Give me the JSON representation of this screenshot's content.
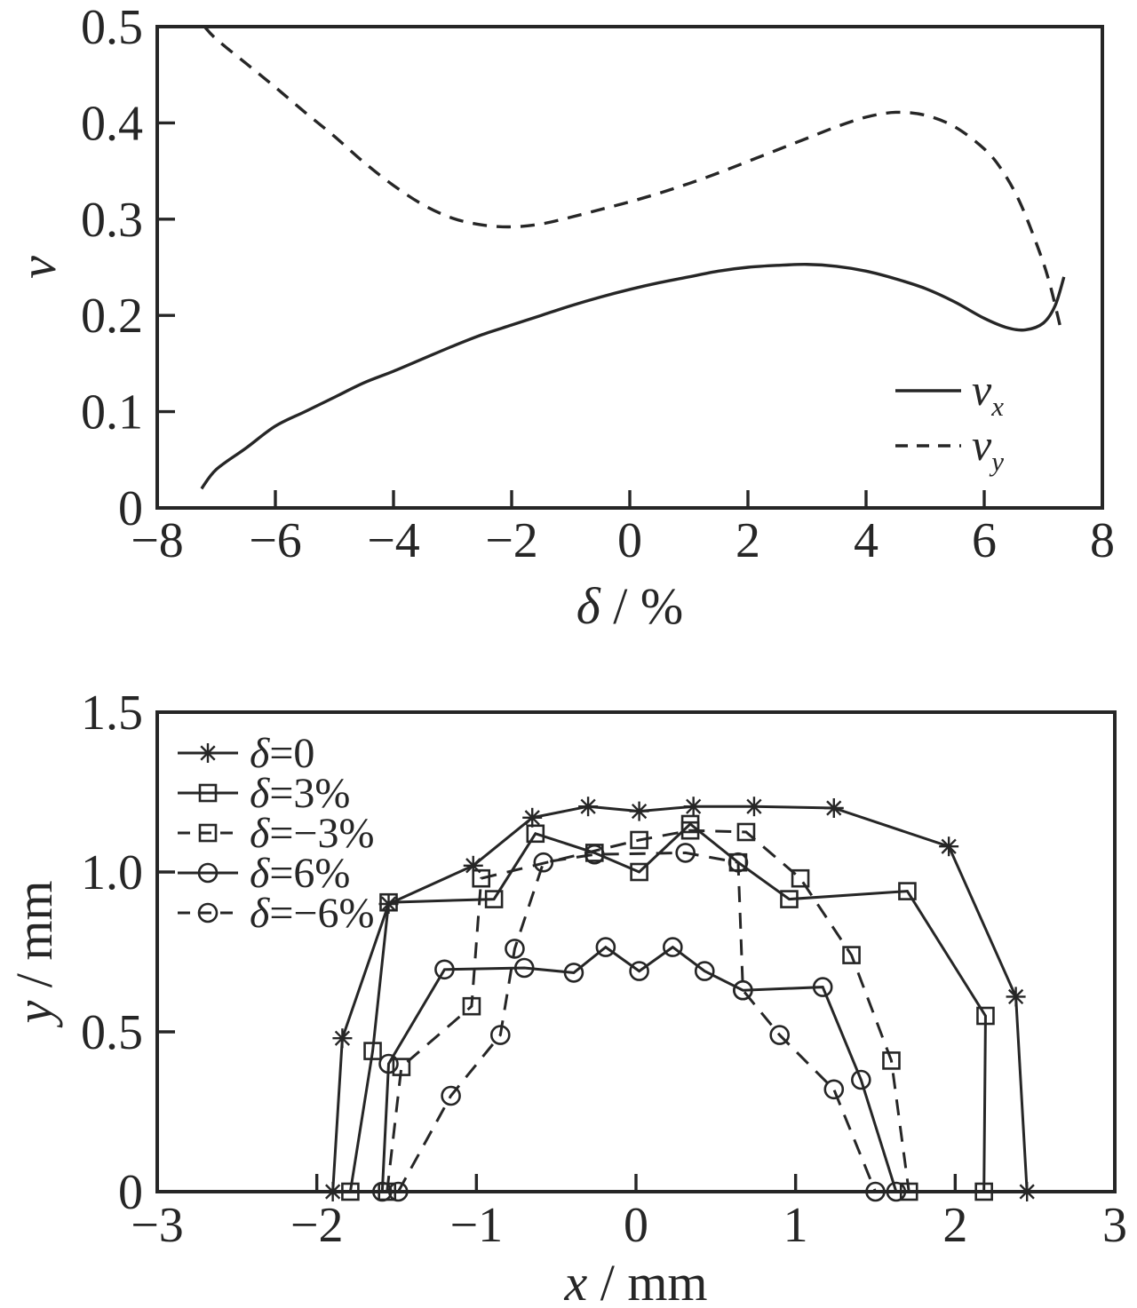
{
  "figure": {
    "background": "#ffffff",
    "ink_color": "#262626"
  },
  "chart_data": [
    {
      "type": "line",
      "id": "velocity-vs-strain",
      "xlabel": "δ / %",
      "ylabel": "v",
      "xlim": [
        -8,
        8
      ],
      "ylim": [
        0,
        0.5
      ],
      "xticks": [
        -8,
        -6,
        -4,
        -2,
        0,
        2,
        4,
        6,
        8
      ],
      "xtick_labels": [
        "−8",
        "−6",
        "−4",
        "−2",
        "0",
        "2",
        "4",
        "6",
        "8"
      ],
      "yticks": [
        0,
        0.1,
        0.2,
        0.3,
        0.4,
        0.5
      ],
      "ytick_labels": [
        "0",
        "0.1",
        "0.2",
        "0.3",
        "0.4",
        "0.5"
      ],
      "grid": false,
      "legend_position": "inside lower right",
      "series": [
        {
          "name": "vx",
          "legend_base": "v",
          "legend_sub": "x",
          "style": "solid",
          "marker": "none",
          "smooth": true,
          "points": [
            [
              -7.25,
              0.02
            ],
            [
              -7.0,
              0.04
            ],
            [
              -6.5,
              0.062
            ],
            [
              -6.0,
              0.085
            ],
            [
              -5.5,
              0.1
            ],
            [
              -5.0,
              0.115
            ],
            [
              -4.5,
              0.13
            ],
            [
              -4.0,
              0.142
            ],
            [
              -3.5,
              0.155
            ],
            [
              -3.0,
              0.168
            ],
            [
              -2.5,
              0.18
            ],
            [
              -2.0,
              0.19
            ],
            [
              -1.5,
              0.2
            ],
            [
              -1.0,
              0.21
            ],
            [
              -0.5,
              0.219
            ],
            [
              0.0,
              0.227
            ],
            [
              0.5,
              0.234
            ],
            [
              1.0,
              0.24
            ],
            [
              1.5,
              0.246
            ],
            [
              2.0,
              0.25
            ],
            [
              2.5,
              0.252
            ],
            [
              3.0,
              0.253
            ],
            [
              3.5,
              0.251
            ],
            [
              4.0,
              0.246
            ],
            [
              4.5,
              0.238
            ],
            [
              5.0,
              0.228
            ],
            [
              5.5,
              0.214
            ],
            [
              6.0,
              0.197
            ],
            [
              6.4,
              0.187
            ],
            [
              6.7,
              0.185
            ],
            [
              7.0,
              0.192
            ],
            [
              7.2,
              0.21
            ],
            [
              7.35,
              0.24
            ]
          ]
        },
        {
          "name": "vy",
          "legend_base": "v",
          "legend_sub": "y",
          "style": "dashed",
          "marker": "none",
          "smooth": true,
          "points": [
            [
              -7.2,
              0.5
            ],
            [
              -7.0,
              0.487
            ],
            [
              -6.5,
              0.462
            ],
            [
              -6.0,
              0.437
            ],
            [
              -5.5,
              0.411
            ],
            [
              -5.0,
              0.386
            ],
            [
              -4.5,
              0.359
            ],
            [
              -4.0,
              0.335
            ],
            [
              -3.5,
              0.315
            ],
            [
              -3.0,
              0.301
            ],
            [
              -2.5,
              0.294
            ],
            [
              -2.0,
              0.292
            ],
            [
              -1.5,
              0.295
            ],
            [
              -1.0,
              0.302
            ],
            [
              -0.5,
              0.31
            ],
            [
              0.0,
              0.318
            ],
            [
              0.5,
              0.327
            ],
            [
              1.0,
              0.337
            ],
            [
              1.5,
              0.348
            ],
            [
              2.0,
              0.36
            ],
            [
              2.5,
              0.372
            ],
            [
              3.0,
              0.384
            ],
            [
              3.5,
              0.396
            ],
            [
              4.0,
              0.406
            ],
            [
              4.5,
              0.411
            ],
            [
              5.0,
              0.408
            ],
            [
              5.5,
              0.396
            ],
            [
              6.0,
              0.373
            ],
            [
              6.3,
              0.351
            ],
            [
              6.6,
              0.318
            ],
            [
              6.9,
              0.272
            ],
            [
              7.1,
              0.235
            ],
            [
              7.3,
              0.185
            ]
          ]
        }
      ]
    },
    {
      "type": "line",
      "id": "profile-y-vs-x",
      "xlabel": "x / mm",
      "ylabel": "y / mm",
      "xlim": [
        -3,
        3
      ],
      "ylim": [
        0,
        1.5
      ],
      "xticks": [
        -3,
        -2,
        -1,
        0,
        1,
        2,
        3
      ],
      "xtick_labels": [
        "−3",
        "−2",
        "−1",
        "0",
        "1",
        "2",
        "3"
      ],
      "yticks": [
        0,
        0.5,
        1.0,
        1.5
      ],
      "ytick_labels": [
        "0",
        "0.5",
        "1.0",
        "1.5"
      ],
      "grid": false,
      "legend_position": "inside upper left",
      "series": [
        {
          "name": "delta=0",
          "legend_label": "δ=0",
          "style": "solid",
          "marker": "asterisk",
          "smooth": false,
          "points": [
            [
              -1.9,
              0
            ],
            [
              -1.84,
              0.48
            ],
            [
              -1.55,
              0.9
            ],
            [
              -1.02,
              1.02
            ],
            [
              -0.65,
              1.17
            ],
            [
              -0.3,
              1.205
            ],
            [
              0.02,
              1.19
            ],
            [
              0.36,
              1.205
            ],
            [
              0.74,
              1.205
            ],
            [
              1.24,
              1.2
            ],
            [
              1.96,
              1.08
            ],
            [
              2.38,
              0.61
            ],
            [
              2.45,
              0
            ]
          ]
        },
        {
          "name": "delta=3%",
          "legend_label": "δ=3%",
          "style": "solid",
          "marker": "square",
          "smooth": false,
          "points": [
            [
              -1.79,
              0
            ],
            [
              -1.65,
              0.44
            ],
            [
              -1.55,
              0.905
            ],
            [
              -0.89,
              0.915
            ],
            [
              -0.63,
              1.12
            ],
            [
              -0.26,
              1.06
            ],
            [
              0.02,
              1.0
            ],
            [
              0.34,
              1.15
            ],
            [
              0.64,
              1.03
            ],
            [
              0.96,
              0.915
            ],
            [
              1.7,
              0.94
            ],
            [
              2.19,
              0.55
            ],
            [
              2.18,
              0
            ]
          ]
        },
        {
          "name": "delta=-3%",
          "legend_label": "δ=−3%",
          "style": "dashed",
          "marker": "square",
          "smooth": false,
          "points": [
            [
              -1.56,
              0
            ],
            [
              -1.47,
              0.39
            ],
            [
              -1.03,
              0.58
            ],
            [
              -0.97,
              0.98
            ],
            [
              0.02,
              1.1
            ],
            [
              0.34,
              1.13
            ],
            [
              0.69,
              1.125
            ],
            [
              1.03,
              0.98
            ],
            [
              1.35,
              0.74
            ],
            [
              1.6,
              0.41
            ],
            [
              1.71,
              0
            ]
          ]
        },
        {
          "name": "delta=6%",
          "legend_label": "δ=6%",
          "style": "solid",
          "marker": "circle",
          "smooth": false,
          "points": [
            [
              -1.59,
              0
            ],
            [
              -1.55,
              0.4
            ],
            [
              -1.2,
              0.695
            ],
            [
              -0.7,
              0.7
            ],
            [
              -0.39,
              0.685
            ],
            [
              -0.19,
              0.765
            ],
            [
              0.02,
              0.69
            ],
            [
              0.23,
              0.765
            ],
            [
              0.43,
              0.69
            ],
            [
              0.67,
              0.63
            ],
            [
              1.17,
              0.64
            ],
            [
              1.41,
              0.35
            ],
            [
              1.63,
              0
            ]
          ]
        },
        {
          "name": "delta=-6%",
          "legend_label": "δ=−6%",
          "style": "dashed",
          "marker": "circle",
          "smooth": false,
          "points": [
            [
              -1.49,
              0
            ],
            [
              -1.16,
              0.3
            ],
            [
              -0.85,
              0.49
            ],
            [
              -0.76,
              0.76
            ],
            [
              -0.58,
              1.03
            ],
            [
              -0.26,
              1.055
            ],
            [
              0.31,
              1.06
            ],
            [
              0.64,
              1.03
            ],
            [
              0.67,
              0.63
            ],
            [
              0.9,
              0.49
            ],
            [
              1.24,
              0.32
            ],
            [
              1.5,
              0
            ]
          ]
        }
      ]
    }
  ]
}
